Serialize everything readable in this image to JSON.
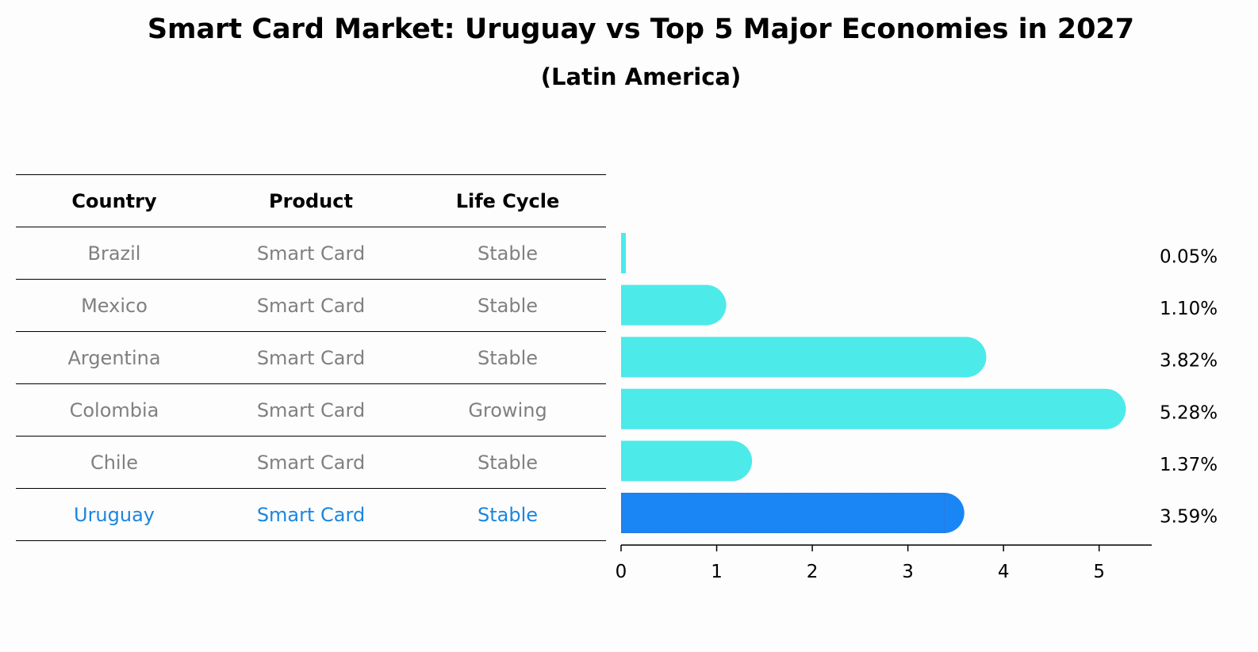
{
  "title": "Smart Card Market: Uruguay vs Top 5 Major Economies in 2027",
  "subtitle": "(Latin America)",
  "table": {
    "headers": [
      "Country",
      "Product",
      "Life Cycle"
    ],
    "rows": [
      {
        "country": "Brazil",
        "product": "Smart Card",
        "life_cycle": "Stable"
      },
      {
        "country": "Mexico",
        "product": "Smart Card",
        "life_cycle": "Stable"
      },
      {
        "country": "Argentina",
        "product": "Smart Card",
        "life_cycle": "Stable"
      },
      {
        "country": "Colombia",
        "product": "Smart Card",
        "life_cycle": "Growing"
      },
      {
        "country": "Chile",
        "product": "Smart Card",
        "life_cycle": "Stable"
      },
      {
        "country": "Uruguay",
        "product": "Smart Card",
        "life_cycle": "Stable"
      }
    ]
  },
  "colors": {
    "bar": "#4deaea",
    "highlight": "#1a86f5",
    "highlight_text": "#1a86e0",
    "muted_text": "#808080"
  },
  "chart_data": {
    "type": "bar",
    "orientation": "horizontal",
    "categories": [
      "Brazil",
      "Mexico",
      "Argentina",
      "Colombia",
      "Chile",
      "Uruguay"
    ],
    "values": [
      0.05,
      1.1,
      3.82,
      5.28,
      1.37,
      3.59
    ],
    "value_labels": [
      "0.05%",
      "1.10%",
      "3.82%",
      "5.28%",
      "1.37%",
      "3.59%"
    ],
    "highlight_category": "Uruguay",
    "xlim": [
      0,
      5.55
    ],
    "xticks": [
      0,
      1,
      2,
      3,
      4,
      5
    ],
    "grid": false
  }
}
